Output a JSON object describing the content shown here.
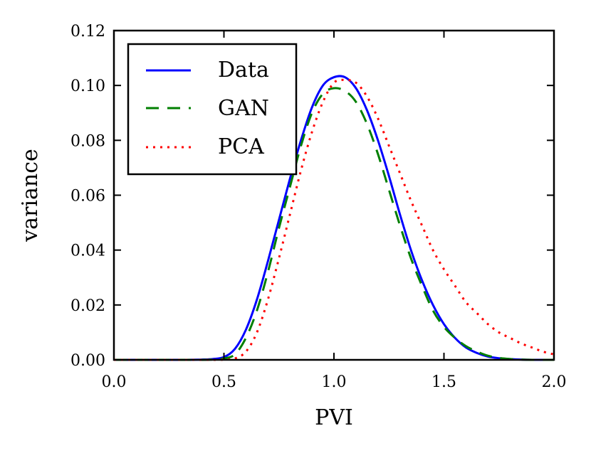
{
  "chart_data": {
    "type": "line",
    "title": "",
    "xlabel": "PVI",
    "ylabel": "variance",
    "xlim": [
      0.0,
      2.0
    ],
    "ylim": [
      0.0,
      0.12
    ],
    "xticks": [
      "0.0",
      "0.5",
      "1.0",
      "1.5",
      "2.0"
    ],
    "yticks": [
      "0.00",
      "0.02",
      "0.04",
      "0.06",
      "0.08",
      "0.10",
      "0.12"
    ],
    "grid": false,
    "legend_position": "top-left",
    "x": [
      0.0,
      0.1,
      0.2,
      0.3,
      0.4,
      0.45,
      0.5,
      0.55,
      0.6,
      0.65,
      0.7,
      0.75,
      0.8,
      0.85,
      0.9,
      0.95,
      1.0,
      1.05,
      1.1,
      1.15,
      1.2,
      1.25,
      1.3,
      1.35,
      1.4,
      1.45,
      1.5,
      1.55,
      1.6,
      1.65,
      1.7,
      1.75,
      1.8,
      1.85,
      1.9,
      1.95,
      2.0
    ],
    "series": [
      {
        "name": "Data",
        "color": "#0000ff",
        "style": "solid",
        "values": [
          0.0,
          0.0,
          0.0,
          0.0,
          0.0001,
          0.0003,
          0.001,
          0.004,
          0.011,
          0.022,
          0.036,
          0.051,
          0.066,
          0.08,
          0.092,
          0.1,
          0.103,
          0.103,
          0.099,
          0.091,
          0.08,
          0.067,
          0.053,
          0.04,
          0.029,
          0.02,
          0.013,
          0.008,
          0.0045,
          0.0025,
          0.0012,
          0.0006,
          0.0003,
          0.0001,
          0.0,
          0.0,
          0.0
        ]
      },
      {
        "name": "GAN",
        "color": "#007f00",
        "style": "dashed",
        "values": [
          0.0,
          0.0,
          0.0,
          0.0,
          0.0,
          0.0001,
          0.0005,
          0.002,
          0.008,
          0.018,
          0.032,
          0.048,
          0.063,
          0.078,
          0.09,
          0.097,
          0.099,
          0.098,
          0.094,
          0.086,
          0.075,
          0.062,
          0.049,
          0.037,
          0.027,
          0.018,
          0.012,
          0.008,
          0.005,
          0.003,
          0.0015,
          0.0007,
          0.0003,
          0.0001,
          0.0,
          0.0,
          0.0
        ]
      },
      {
        "name": "PCA",
        "color": "#ff0000",
        "style": "dotted",
        "values": [
          0.0,
          0.0,
          0.0,
          0.0,
          0.0,
          0.0,
          0.0001,
          0.0005,
          0.003,
          0.01,
          0.022,
          0.037,
          0.053,
          0.069,
          0.083,
          0.094,
          0.101,
          0.102,
          0.101,
          0.096,
          0.088,
          0.078,
          0.068,
          0.058,
          0.049,
          0.04,
          0.033,
          0.027,
          0.021,
          0.017,
          0.013,
          0.01,
          0.008,
          0.006,
          0.0045,
          0.003,
          0.002
        ]
      }
    ]
  }
}
